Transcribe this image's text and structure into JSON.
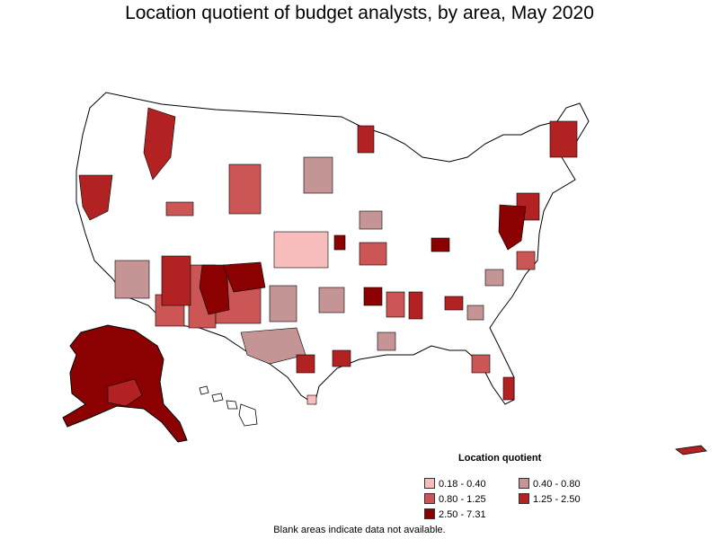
{
  "title": "Location quotient of budget analysts, by area, May 2020",
  "legend": {
    "title": "Location quotient",
    "items": [
      {
        "label": "0.18 - 0.40",
        "color": "#f7bcbc"
      },
      {
        "label": "0.40 - 0.80",
        "color": "#c59596"
      },
      {
        "label": "0.80 - 1.25",
        "color": "#cc5555"
      },
      {
        "label": "1.25 - 2.50",
        "color": "#b22222"
      },
      {
        "label": "2.50 - 7.31",
        "color": "#8b0000"
      }
    ]
  },
  "footnote": "Blank areas indicate data not available.",
  "colors": {
    "outline": "#000000",
    "blank": "#ffffff"
  }
}
